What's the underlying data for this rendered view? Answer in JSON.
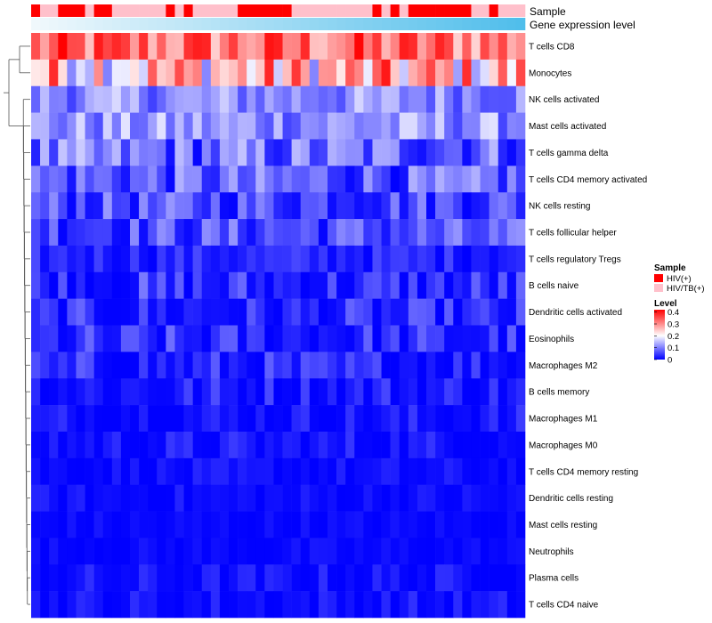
{
  "chart_data": {
    "type": "heatmap",
    "title": "",
    "column_count": 55,
    "annotations": {
      "sample_label": "Sample",
      "expression_label": "Gene expression level",
      "sample_groups": [
        "HIV(+)",
        "HIV/TB(+)"
      ],
      "sample_colors": [
        "#ff0000",
        "#ffc0cb"
      ],
      "sample_pattern": [
        0,
        1,
        1,
        0,
        0,
        0,
        1,
        0,
        0,
        1,
        1,
        1,
        1,
        1,
        1,
        0,
        1,
        0,
        1,
        1,
        1,
        1,
        1,
        0,
        0,
        0,
        0,
        0,
        0,
        1,
        1,
        1,
        1,
        1,
        1,
        1,
        1,
        1,
        0,
        1,
        0,
        1,
        0,
        0,
        0,
        0,
        0,
        0,
        0,
        1,
        1,
        0,
        1,
        1,
        1
      ]
    },
    "rows": [
      "T cells CD8",
      "Monocytes",
      "NK cells activated",
      "Mast cells activated",
      "T cells gamma delta",
      "T cells CD4 memory activated",
      "NK cells resting",
      "T cells follicular helper",
      "T cells regulatory  Tregs",
      "B cells naive",
      "Dendritic cells activated",
      "Eosinophils",
      "Macrophages M2",
      "B cells memory",
      "Macrophages M1",
      "Macrophages M0",
      "T cells CD4 memory resting",
      "Dendritic cells resting",
      "Mast cells resting",
      "Neutrophils",
      "Plasma cells",
      "T cells CD4 naive"
    ],
    "row_level_ranges": [
      [
        0.22,
        0.42
      ],
      [
        0.1,
        0.4
      ],
      [
        0.05,
        0.17
      ],
      [
        0.05,
        0.18
      ],
      [
        0.0,
        0.16
      ],
      [
        0.0,
        0.14
      ],
      [
        0.0,
        0.12
      ],
      [
        0.0,
        0.12
      ],
      [
        0.0,
        0.06
      ],
      [
        0.0,
        0.1
      ],
      [
        0.0,
        0.08
      ],
      [
        0.0,
        0.09
      ],
      [
        0.0,
        0.08
      ],
      [
        0.0,
        0.07
      ],
      [
        0.0,
        0.05
      ],
      [
        0.0,
        0.05
      ],
      [
        0.0,
        0.03
      ],
      [
        0.0,
        0.03
      ],
      [
        0.0,
        0.02
      ],
      [
        0.0,
        0.02
      ],
      [
        0.0,
        0.04
      ],
      [
        0.0,
        0.04
      ]
    ],
    "legend": {
      "sample_title": "Sample",
      "level_title": "Level",
      "level_ticks": [
        "0.4",
        "0.3",
        "0.2",
        "0.1",
        "0"
      ],
      "level_min": 0,
      "level_max": 0.42,
      "placement": "right"
    },
    "colors": {
      "low": "#0000ff",
      "mid": "#ffffff",
      "high": "#ff0000",
      "mid_value": 0.2
    },
    "dendrogram": "rows"
  }
}
